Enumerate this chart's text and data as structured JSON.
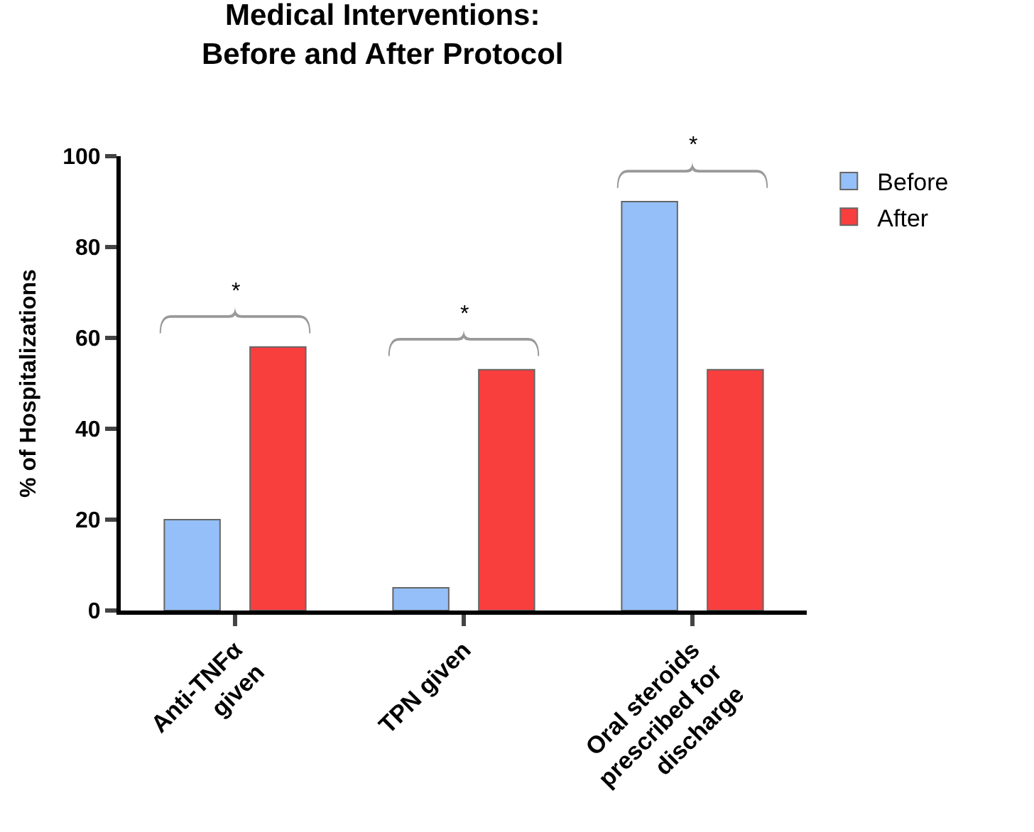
{
  "chart_data": {
    "type": "bar",
    "title": "Medical Interventions:\nBefore and After Protocol",
    "ylabel": "% of Hospitalizations",
    "categories": [
      "Anti-TNFα given",
      "TPN given",
      "Oral steroids prescribed for discharge"
    ],
    "series": [
      {
        "name": "Before",
        "color": "#94bff8",
        "values": [
          20,
          5,
          90
        ]
      },
      {
        "name": "After",
        "color": "#f93e3e",
        "values": [
          58,
          53,
          53
        ]
      }
    ],
    "ylim": [
      0,
      100
    ],
    "yticks": [
      0,
      20,
      40,
      60,
      80,
      100
    ],
    "legend": "top right",
    "annotations": [
      "*",
      "*",
      "*"
    ]
  }
}
